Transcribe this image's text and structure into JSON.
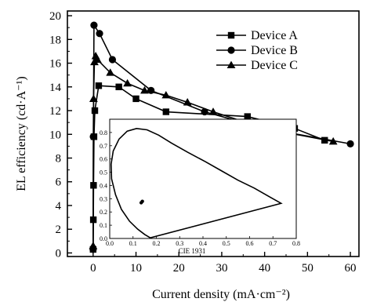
{
  "chart_data": [
    {
      "type": "line",
      "xlabel": "Current density (mA·cm⁻²)",
      "ylabel": "EL efficiency (cd·A⁻¹)",
      "xlim": [
        -6,
        62
      ],
      "ylim": [
        -0.3,
        20.4
      ],
      "x_ticks": [
        "0",
        "10",
        "20",
        "30",
        "40",
        "50",
        "60"
      ],
      "y_ticks": [
        "0",
        "2",
        "4",
        "6",
        "8",
        "10",
        "12",
        "14",
        "16",
        "18",
        "20"
      ],
      "legend": {
        "position": "top-right"
      },
      "series": [
        {
          "name": "Device A",
          "marker": "square",
          "x": [
            0.0,
            0.05,
            0.1,
            0.2,
            0.4,
            1.3,
            6.0,
            10.0,
            17.0,
            36.0,
            47.0,
            54.0
          ],
          "y": [
            0.3,
            2.8,
            5.7,
            9.8,
            12.0,
            14.1,
            14.0,
            13.0,
            11.9,
            11.5,
            10.5,
            9.5
          ]
        },
        {
          "name": "Device B",
          "marker": "circle",
          "x": [
            0.0,
            0.05,
            0.2,
            1.5,
            4.5,
            13.5,
            26.0,
            40.0,
            60.0
          ],
          "y": [
            0.3,
            9.8,
            19.2,
            18.5,
            16.3,
            13.7,
            11.9,
            10.5,
            9.2
          ]
        },
        {
          "name": "Device C",
          "marker": "triangle",
          "x": [
            0.0,
            0.1,
            0.3,
            0.6,
            1.0,
            4.0,
            8.0,
            12.0,
            17.0,
            22.0,
            28.0,
            40.0,
            56.0
          ],
          "y": [
            0.6,
            13.0,
            16.1,
            16.6,
            16.3,
            15.2,
            14.3,
            13.7,
            13.3,
            12.7,
            11.9,
            10.5,
            9.4
          ]
        }
      ]
    },
    {
      "type": "scatter",
      "xlabel": "CIE 1931",
      "ylabel": "",
      "xlim": [
        0,
        0.8
      ],
      "ylim": [
        0,
        0.9
      ],
      "x_ticks": [
        "0.0",
        "0.1",
        "0.2",
        "0.3",
        "0.4",
        "0.5",
        "0.6",
        "0.7",
        "0.8"
      ],
      "y_ticks": [
        "0.0",
        "0.1",
        "0.2",
        "0.3",
        "0.4",
        "0.5",
        "0.6",
        "0.7",
        "0.8"
      ],
      "locus": {
        "x": [
          0.174,
          0.15,
          0.12,
          0.085,
          0.05,
          0.025,
          0.008,
          0.006,
          0.015,
          0.04,
          0.075,
          0.115,
          0.16,
          0.21,
          0.265,
          0.335,
          0.41,
          0.48,
          0.55,
          0.62,
          0.69,
          0.735,
          0.174
        ],
        "y": [
          0.005,
          0.03,
          0.07,
          0.13,
          0.22,
          0.33,
          0.45,
          0.56,
          0.66,
          0.75,
          0.81,
          0.83,
          0.82,
          0.78,
          0.72,
          0.65,
          0.58,
          0.51,
          0.44,
          0.38,
          0.31,
          0.265,
          0.005
        ]
      },
      "points": [
        {
          "x": 0.135,
          "y": 0.27
        },
        {
          "x": 0.14,
          "y": 0.28
        }
      ]
    }
  ]
}
